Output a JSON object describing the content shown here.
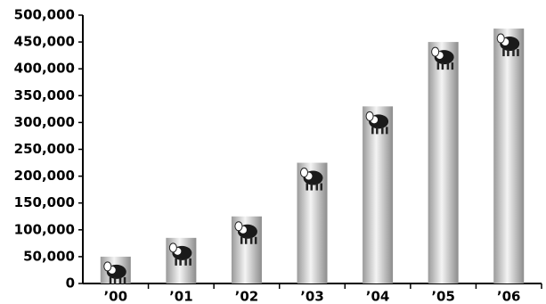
{
  "chart_data": {
    "type": "bar",
    "categories": [
      "’00",
      "’01",
      "’02",
      "’03",
      "’04",
      "’05",
      "’06"
    ],
    "values": [
      50000,
      85000,
      125000,
      225000,
      330000,
      450000,
      475000
    ],
    "ylim": [
      0,
      500000
    ],
    "yticks": [
      0,
      {
        "value": 50000,
        "label": "50,000"
      },
      {
        "value": 100000,
        "label": "100,000"
      },
      {
        "value": 150000,
        "label": "150,000"
      },
      {
        "value": 200000,
        "label": "200,000"
      },
      {
        "value": 250000,
        "label": "250,000"
      },
      {
        "value": 300000,
        "label": "300,000"
      },
      {
        "value": 350000,
        "label": "350,000"
      },
      {
        "value": 400000,
        "label": "400,000"
      },
      {
        "value": 450000,
        "label": "450,000"
      },
      {
        "value": 500000,
        "label": "500,000"
      }
    ]
  }
}
